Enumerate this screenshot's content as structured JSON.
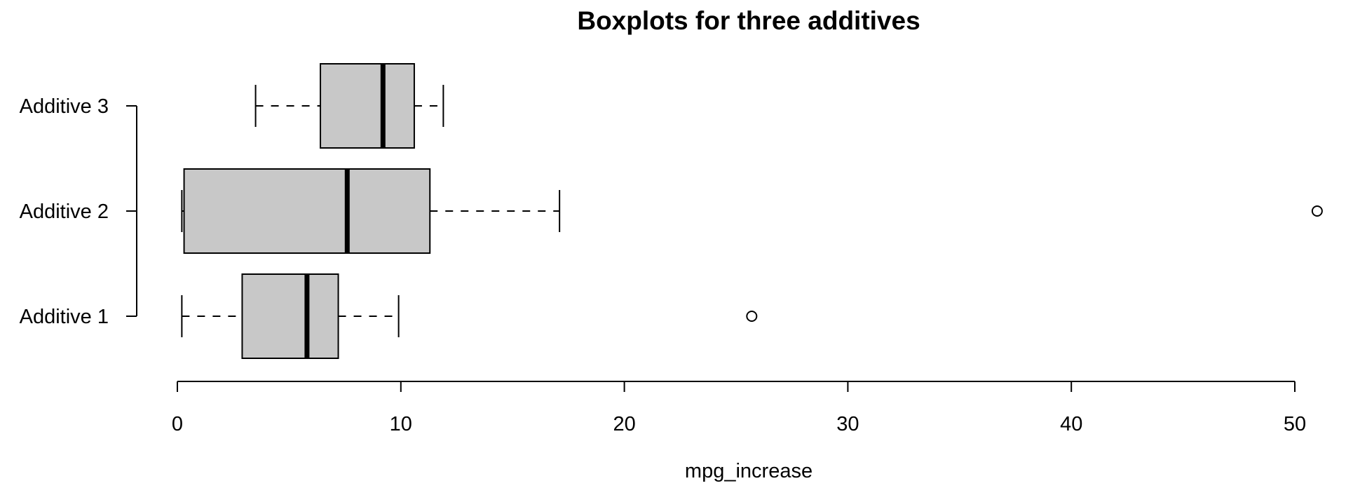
{
  "chart_data": {
    "type": "boxplot",
    "orientation": "horizontal",
    "title": "Boxplots for three additives",
    "xlabel": "mpg_increase",
    "ylabel": "",
    "xlim": [
      0,
      50
    ],
    "xticks": [
      0,
      10,
      20,
      30,
      40,
      50
    ],
    "xtick_labels": [
      "0",
      "10",
      "20",
      "30",
      "40",
      "50"
    ],
    "categories": [
      "Additive 1",
      "Additive 2",
      "Additive 3"
    ],
    "boxes": [
      {
        "category": "Additive 1",
        "whisker_low": 0.2,
        "q1": 2.9,
        "median": 5.8,
        "q3": 7.2,
        "whisker_high": 9.9,
        "outliers": [
          25.7
        ]
      },
      {
        "category": "Additive 2",
        "whisker_low": 0.2,
        "q1": 0.3,
        "median": 7.6,
        "q3": 11.3,
        "whisker_high": 17.1,
        "outliers": [
          51.0
        ]
      },
      {
        "category": "Additive 3",
        "whisker_low": 3.5,
        "q1": 6.4,
        "median": 9.2,
        "q3": 10.6,
        "whisker_high": 11.9,
        "outliers": []
      }
    ],
    "box_fill": "#c8c8c8",
    "line_color": "#000000",
    "grid": false,
    "legend": "none"
  }
}
